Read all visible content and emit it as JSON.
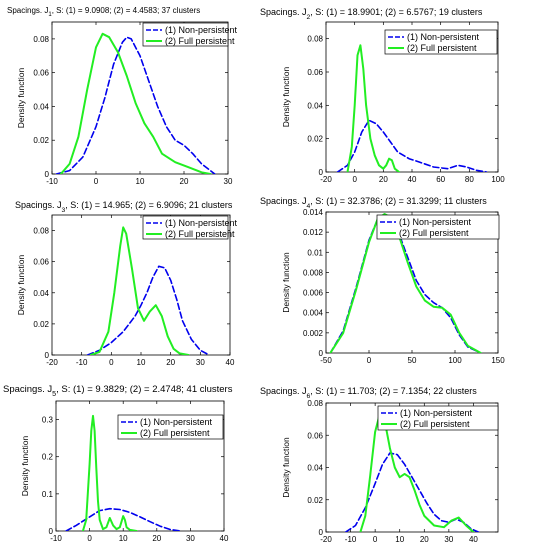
{
  "colors": {
    "non_persistent": "#0000ee",
    "full_persistent": "#22ee22",
    "axes": "#000000"
  },
  "chart_data": [
    {
      "type": "line",
      "title_main": "Spacings. J",
      "title_sub": "1",
      "title_rest": ", S: (1) = 9.0908; (2) = 4.4583; 37 clusters",
      "ylabel": "Density function",
      "xlim": [
        -10,
        30
      ],
      "ylim": [
        0,
        0.09
      ],
      "xticks": [
        "-10",
        "0",
        "10",
        "20",
        "30"
      ],
      "yticks": [
        "0",
        "0.02",
        "0.04",
        "0.06",
        "0.08"
      ],
      "xtick_values": [
        -10,
        0,
        10,
        20,
        30
      ],
      "ytick_values": [
        0,
        0.02,
        0.04,
        0.06,
        0.08
      ],
      "legend": [
        "(1) Non-persistent",
        "(2) Full persistent"
      ],
      "series": [
        {
          "name": "(1) Non-persistent",
          "style": "dashed",
          "x": [
            -9,
            -6,
            -3,
            0,
            2,
            4,
            6,
            7,
            8,
            10,
            12,
            14,
            16,
            18,
            20,
            22,
            24,
            27
          ],
          "y": [
            0.0,
            0.002,
            0.01,
            0.028,
            0.045,
            0.065,
            0.078,
            0.081,
            0.08,
            0.07,
            0.055,
            0.04,
            0.028,
            0.02,
            0.017,
            0.012,
            0.006,
            0.0
          ]
        },
        {
          "name": "(2) Full persistent",
          "style": "solid",
          "x": [
            -8,
            -6,
            -4,
            -2,
            0,
            1.5,
            3,
            5,
            7,
            9,
            11,
            13,
            15,
            18,
            21,
            24,
            26
          ],
          "y": [
            0.0,
            0.006,
            0.022,
            0.05,
            0.075,
            0.083,
            0.081,
            0.072,
            0.058,
            0.042,
            0.03,
            0.022,
            0.012,
            0.007,
            0.004,
            0.001,
            0.0
          ]
        }
      ]
    },
    {
      "type": "line",
      "title_main": "Spacings. J",
      "title_sub": "2",
      "title_rest": ", S: (1) = 18.9901; (2) = 6.5767; 19 clusters",
      "ylabel": "Density function",
      "xlim": [
        -20,
        100
      ],
      "ylim": [
        0,
        0.09
      ],
      "xticks": [
        "-20",
        "0",
        "20",
        "40",
        "60",
        "80",
        "100"
      ],
      "yticks": [
        "0",
        "0.02",
        "0.04",
        "0.06",
        "0.08"
      ],
      "xtick_values": [
        -20,
        0,
        20,
        40,
        60,
        80,
        100
      ],
      "ytick_values": [
        0,
        0.02,
        0.04,
        0.06,
        0.08
      ],
      "legend": [
        "(1) Non-persistent",
        "(2) Full persistent"
      ],
      "series": [
        {
          "name": "(1) Non-persistent",
          "style": "dashed",
          "x": [
            -12,
            -5,
            0,
            5,
            10,
            15,
            20,
            25,
            30,
            38,
            45,
            55,
            65,
            72,
            78,
            85,
            92
          ],
          "y": [
            0.0,
            0.004,
            0.012,
            0.024,
            0.031,
            0.029,
            0.024,
            0.018,
            0.012,
            0.008,
            0.006,
            0.003,
            0.002,
            0.004,
            0.003,
            0.001,
            0.0
          ]
        },
        {
          "name": "(2) Full persistent",
          "style": "solid",
          "x": [
            -5,
            -2,
            0,
            2,
            4,
            6,
            8,
            11,
            14,
            17,
            20,
            22,
            24,
            26,
            28,
            31
          ],
          "y": [
            0.0,
            0.015,
            0.04,
            0.07,
            0.076,
            0.062,
            0.04,
            0.02,
            0.01,
            0.004,
            0.002,
            0.004,
            0.008,
            0.007,
            0.002,
            0.0
          ]
        }
      ]
    },
    {
      "type": "line",
      "title_main": "Spacings. J",
      "title_sub": "3",
      "title_rest": ", S: (1) = 14.965; (2) = 6.9096; 21 clusters",
      "ylabel": "Density function",
      "xlim": [
        -20,
        40
      ],
      "ylim": [
        0,
        0.09
      ],
      "xticks": [
        "-20",
        "-10",
        "0",
        "10",
        "20",
        "30",
        "40"
      ],
      "yticks": [
        "0",
        "0.02",
        "0.04",
        "0.06",
        "0.08"
      ],
      "xtick_values": [
        -20,
        -10,
        0,
        10,
        20,
        30,
        40
      ],
      "ytick_values": [
        0,
        0.02,
        0.04,
        0.06,
        0.08
      ],
      "legend": [
        "(1) Non-persistent",
        "(2) Full persistent"
      ],
      "series": [
        {
          "name": "(1) Non-persistent",
          "style": "dashed",
          "x": [
            -8,
            -4,
            0,
            4,
            8,
            10,
            12,
            14,
            16,
            18,
            20,
            22,
            24,
            27,
            30,
            33
          ],
          "y": [
            0.0,
            0.003,
            0.008,
            0.015,
            0.025,
            0.032,
            0.04,
            0.05,
            0.057,
            0.056,
            0.048,
            0.036,
            0.022,
            0.01,
            0.003,
            0.0
          ]
        },
        {
          "name": "(2) Full persistent",
          "style": "solid",
          "x": [
            -7,
            -4,
            -1,
            1,
            3,
            4,
            5,
            7,
            9,
            11,
            13,
            15,
            17,
            19,
            21,
            23,
            26
          ],
          "y": [
            0.0,
            0.002,
            0.015,
            0.04,
            0.07,
            0.082,
            0.078,
            0.055,
            0.03,
            0.022,
            0.028,
            0.032,
            0.025,
            0.012,
            0.004,
            0.001,
            0.0
          ]
        }
      ]
    },
    {
      "type": "line",
      "title_main": "Spacings. J",
      "title_sub": "4",
      "title_rest": ", S: (1) = 32.3786; (2) = 31.3299; 11 clusters",
      "ylabel": "Density function",
      "xlim": [
        -50,
        150
      ],
      "ylim": [
        0,
        0.014
      ],
      "xticks": [
        "-50",
        "0",
        "50",
        "100",
        "150"
      ],
      "yticks": [
        "0",
        "0.002",
        "0.004",
        "0.006",
        "0.008",
        "0.01",
        "0.012",
        "0.014"
      ],
      "xtick_values": [
        -50,
        0,
        50,
        100,
        150
      ],
      "ytick_values": [
        0,
        0.002,
        0.004,
        0.006,
        0.008,
        0.01,
        0.012,
        0.014
      ],
      "legend": [
        "(1) Non-persistent",
        "(2) Full persistent"
      ],
      "series": [
        {
          "name": "(1) Non-persistent",
          "style": "dashed",
          "x": [
            -45,
            -30,
            -15,
            0,
            10,
            18,
            25,
            35,
            45,
            55,
            65,
            75,
            85,
            95,
            105,
            115,
            130
          ],
          "y": [
            0.0,
            0.0022,
            0.0065,
            0.0112,
            0.0133,
            0.0138,
            0.0134,
            0.0118,
            0.0095,
            0.0072,
            0.0058,
            0.005,
            0.0045,
            0.0035,
            0.0018,
            0.0006,
            0.0
          ]
        },
        {
          "name": "(2) Full persistent",
          "style": "solid",
          "x": [
            -45,
            -30,
            -15,
            0,
            10,
            18,
            25,
            35,
            45,
            55,
            65,
            75,
            85,
            95,
            105,
            115,
            130
          ],
          "y": [
            0.0,
            0.002,
            0.0063,
            0.011,
            0.0133,
            0.0138,
            0.0135,
            0.0116,
            0.009,
            0.0066,
            0.0052,
            0.0046,
            0.0045,
            0.0038,
            0.002,
            0.0007,
            0.0
          ]
        }
      ]
    },
    {
      "type": "line",
      "title_main": "Spacings. J",
      "title_sub": "5",
      "title_rest": ", S: (1) = 9.3829; (2) = 2.4748; 41 clusters",
      "ylabel": "Density function",
      "xlim": [
        -10,
        40
      ],
      "ylim": [
        0,
        0.35
      ],
      "xticks": [
        "-10",
        "0",
        "10",
        "20",
        "30",
        "40"
      ],
      "yticks": [
        "0",
        "0.1",
        "0.2",
        "0.3"
      ],
      "xtick_values": [
        -10,
        0,
        10,
        20,
        30,
        40
      ],
      "ytick_values": [
        0,
        0.1,
        0.2,
        0.3
      ],
      "legend": [
        "(1) Non-persistent",
        "(2) Full persistent"
      ],
      "series": [
        {
          "name": "(1) Non-persistent",
          "style": "dashed",
          "x": [
            -7,
            -4,
            0,
            3,
            6,
            9,
            12,
            15,
            18,
            21,
            24,
            27
          ],
          "y": [
            0.0,
            0.015,
            0.038,
            0.055,
            0.06,
            0.058,
            0.05,
            0.038,
            0.025,
            0.013,
            0.004,
            0.0
          ]
        },
        {
          "name": "(2) Full persistent",
          "style": "solid",
          "x": [
            -2,
            -1,
            0,
            0.5,
            1,
            1.5,
            2,
            2.5,
            3,
            4,
            5,
            6,
            7,
            8,
            9,
            10,
            10.5,
            11,
            12,
            14
          ],
          "y": [
            0.0,
            0.03,
            0.18,
            0.27,
            0.31,
            0.27,
            0.17,
            0.08,
            0.03,
            0.005,
            0.01,
            0.035,
            0.015,
            0.005,
            0.01,
            0.04,
            0.03,
            0.01,
            0.003,
            0.0
          ]
        }
      ]
    },
    {
      "type": "line",
      "title_main": "Spacings. J",
      "title_sub": "6",
      "title_rest": ", S: (1) = 11.703; (2) = 7.1354; 22 clusters",
      "ylabel": "Density function",
      "xlim": [
        -20,
        50
      ],
      "ylim": [
        0,
        0.08
      ],
      "xticks": [
        "-20",
        "-10",
        "0",
        "10",
        "20",
        "30",
        "40"
      ],
      "yticks": [
        "0",
        "0.02",
        "0.04",
        "0.06",
        "0.08"
      ],
      "xtick_values": [
        -20,
        -10,
        0,
        10,
        20,
        30,
        40
      ],
      "ytick_values": [
        0,
        0.02,
        0.04,
        0.06,
        0.08
      ],
      "legend": [
        "(1) Non-persistent",
        "(2) Full persistent"
      ],
      "series": [
        {
          "name": "(1) Non-persistent",
          "style": "dashed",
          "x": [
            -12,
            -8,
            -4,
            0,
            3,
            6,
            9,
            12,
            15,
            18,
            21,
            24,
            27,
            30,
            33,
            36,
            39,
            42
          ],
          "y": [
            0.0,
            0.004,
            0.015,
            0.03,
            0.042,
            0.049,
            0.048,
            0.042,
            0.034,
            0.026,
            0.018,
            0.011,
            0.007,
            0.006,
            0.008,
            0.006,
            0.002,
            0.0
          ]
        },
        {
          "name": "(2) Full persistent",
          "style": "solid",
          "x": [
            -6,
            -4,
            -2,
            0,
            2,
            4,
            6,
            8,
            10,
            12,
            14,
            16,
            18,
            20,
            24,
            28,
            31,
            34,
            37,
            40
          ],
          "y": [
            0.0,
            0.01,
            0.035,
            0.062,
            0.074,
            0.068,
            0.052,
            0.04,
            0.034,
            0.036,
            0.034,
            0.026,
            0.017,
            0.01,
            0.004,
            0.003,
            0.007,
            0.009,
            0.004,
            0.0
          ]
        }
      ]
    }
  ]
}
